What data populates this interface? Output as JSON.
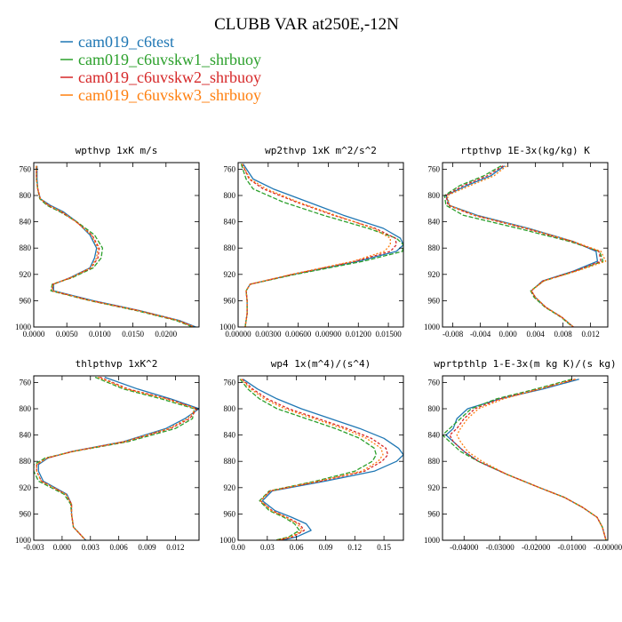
{
  "figure_title": "CLUBB VAR at250E,-12N",
  "legend": {
    "placement": "top-left",
    "entries": [
      {
        "label": "cam019_c6test",
        "color": "#1f77b4"
      },
      {
        "label": "cam019_c6uvskw1_shrbuoy",
        "color": "#2ca02c"
      },
      {
        "label": "cam019_c6uvskw2_shrbuoy",
        "color": "#d62728"
      },
      {
        "label": "cam019_c6uvskw3_shrbuoy",
        "color": "#ff7f0e"
      }
    ]
  },
  "chart_data": [
    {
      "type": "line",
      "title": "wpthvp  1xK m/s",
      "xlim": [
        0,
        0.025
      ],
      "xticks": [
        0,
        0.005,
        0.01,
        0.015,
        0.02
      ],
      "xtick_labels": [
        "0.0000",
        "0.0050",
        "0.0100",
        "0.0150",
        "0.0200"
      ],
      "ylim": [
        1000,
        750
      ],
      "yticks": [
        760,
        800,
        840,
        880,
        920,
        960,
        1000
      ],
      "ytick_labels": [
        "760",
        "800",
        "840",
        "880",
        "920",
        "960",
        "1000"
      ],
      "y": [
        755,
        775,
        790,
        805,
        815,
        825,
        840,
        860,
        880,
        895,
        910,
        925,
        935,
        945,
        960,
        975,
        990,
        1000
      ],
      "series": [
        {
          "name": "cam019_c6test",
          "color": "#1f77b4",
          "x": [
            0.0005,
            0.0005,
            0.0006,
            0.001,
            0.0025,
            0.0045,
            0.0065,
            0.0085,
            0.0095,
            0.0092,
            0.0085,
            0.0055,
            0.003,
            0.003,
            0.009,
            0.016,
            0.022,
            0.0245
          ]
        },
        {
          "name": "cam019_c6uvskw1_shrbuoy",
          "color": "#2ca02c",
          "x": [
            0.0004,
            0.0004,
            0.0006,
            0.0009,
            0.002,
            0.004,
            0.0065,
            0.0092,
            0.0104,
            0.0102,
            0.009,
            0.0058,
            0.0028,
            0.0026,
            0.0085,
            0.0155,
            0.0215,
            0.024
          ]
        },
        {
          "name": "cam019_c6uvskw2_shrbuoy",
          "color": "#d62728",
          "x": [
            0.0004,
            0.0004,
            0.0006,
            0.001,
            0.0022,
            0.0042,
            0.0064,
            0.0088,
            0.0099,
            0.0097,
            0.0087,
            0.0056,
            0.0029,
            0.0028,
            0.0087,
            0.0158,
            0.0218,
            0.0243
          ]
        },
        {
          "name": "cam019_c6uvskw3_shrbuoy",
          "color": "#ff7f0e",
          "x": [
            0.0004,
            0.0004,
            0.0006,
            0.001,
            0.0023,
            0.0043,
            0.0064,
            0.0087,
            0.0097,
            0.0095,
            0.0086,
            0.0056,
            0.0029,
            0.0028,
            0.0087,
            0.0158,
            0.0218,
            0.0243
          ]
        }
      ]
    },
    {
      "type": "line",
      "title": "wp2thvp  1xK m^2/s^2",
      "xlim": [
        0,
        0.0165
      ],
      "xticks": [
        0,
        0.003,
        0.006,
        0.009,
        0.012,
        0.015
      ],
      "xtick_labels": [
        "0.00000",
        "0.00300",
        "0.00600",
        "0.00900",
        "0.01200",
        "0.01500"
      ],
      "ylim": [
        1000,
        750
      ],
      "yticks": [
        760,
        800,
        840,
        880,
        920,
        960,
        1000
      ],
      "ytick_labels": [
        "760",
        "800",
        "840",
        "880",
        "920",
        "960",
        "1000"
      ],
      "y": [
        752,
        775,
        790,
        810,
        830,
        850,
        865,
        875,
        885,
        900,
        920,
        935,
        945,
        960,
        980,
        1000
      ],
      "series": [
        {
          "name": "cam019_c6test",
          "color": "#1f77b4",
          "x": [
            0.0005,
            0.0015,
            0.0035,
            0.007,
            0.0105,
            0.0145,
            0.0162,
            0.0165,
            0.0158,
            0.012,
            0.0055,
            0.0012,
            0.0008,
            0.0009,
            0.0009,
            0.0007
          ]
        },
        {
          "name": "cam019_c6uvskw1_shrbuoy",
          "color": "#2ca02c",
          "x": [
            0.0003,
            0.0008,
            0.0015,
            0.0045,
            0.0085,
            0.013,
            0.0158,
            0.0165,
            0.0164,
            0.0125,
            0.0057,
            0.0012,
            0.0008,
            0.0009,
            0.0009,
            0.0007
          ]
        },
        {
          "name": "cam019_c6uvskw2_shrbuoy",
          "color": "#d62728",
          "x": [
            0.0004,
            0.0011,
            0.0025,
            0.0058,
            0.0095,
            0.0137,
            0.0157,
            0.0158,
            0.0152,
            0.0117,
            0.0054,
            0.0012,
            0.0008,
            0.0009,
            0.0009,
            0.0007
          ]
        },
        {
          "name": "cam019_c6uvskw3_shrbuoy",
          "color": "#ff7f0e",
          "x": [
            0.0004,
            0.0012,
            0.0028,
            0.006,
            0.0097,
            0.0135,
            0.0152,
            0.0152,
            0.0146,
            0.0115,
            0.0053,
            0.0012,
            0.0008,
            0.0009,
            0.0009,
            0.0007
          ]
        }
      ]
    },
    {
      "type": "line",
      "title": "rtpthvp  1E-3x(kg/kg) K",
      "xlim": [
        -0.0095,
        0.0145
      ],
      "xticks": [
        -0.008,
        -0.004,
        0,
        0.004,
        0.008,
        0.012
      ],
      "xtick_labels": [
        "-0.008",
        "-0.004",
        "0.000",
        "0.004",
        "0.008",
        "0.012"
      ],
      "ylim": [
        1000,
        750
      ],
      "yticks": [
        760,
        800,
        840,
        880,
        920,
        960,
        1000
      ],
      "ytick_labels": [
        "760",
        "800",
        "840",
        "880",
        "920",
        "960",
        "1000"
      ],
      "y": [
        755,
        770,
        785,
        800,
        815,
        830,
        850,
        870,
        885,
        900,
        915,
        930,
        945,
        955,
        970,
        985,
        1000
      ],
      "series": [
        {
          "name": "cam019_c6test",
          "color": "#1f77b4",
          "x": [
            -0.0005,
            -0.0025,
            -0.006,
            -0.009,
            -0.0085,
            -0.0045,
            0.003,
            0.0095,
            0.0128,
            0.013,
            0.0095,
            0.005,
            0.0034,
            0.004,
            0.0055,
            0.0078,
            0.0095
          ]
        },
        {
          "name": "cam019_c6uvskw1_shrbuoy",
          "color": "#2ca02c",
          "x": [
            -0.001,
            -0.0035,
            -0.007,
            -0.0092,
            -0.009,
            -0.0065,
            0.0015,
            0.009,
            0.0133,
            0.0138,
            0.0098,
            0.0052,
            0.0033,
            0.0038,
            0.0054,
            0.0077,
            0.0094
          ]
        },
        {
          "name": "cam019_c6uvskw2_shrbuoy",
          "color": "#d62728",
          "x": [
            -0.0007,
            -0.003,
            -0.0065,
            -0.009,
            -0.0087,
            -0.005,
            0.0025,
            0.0093,
            0.0132,
            0.0135,
            0.0097,
            0.0051,
            0.0034,
            0.004,
            0.0055,
            0.0078,
            0.0095
          ]
        },
        {
          "name": "cam019_c6uvskw3_shrbuoy",
          "color": "#ff7f0e",
          "x": [
            -0.0002,
            -0.002,
            -0.0055,
            -0.0088,
            -0.0085,
            -0.0048,
            0.0028,
            0.0095,
            0.0135,
            0.0142,
            0.01,
            0.0052,
            0.0034,
            0.004,
            0.0055,
            0.0078,
            0.0095
          ]
        }
      ]
    },
    {
      "type": "line",
      "title": "thlpthvp  1xK^2",
      "xlim": [
        -0.003,
        0.0145
      ],
      "xticks": [
        -0.003,
        0,
        0.003,
        0.006,
        0.009,
        0.012
      ],
      "xtick_labels": [
        "-0.003",
        "0.000",
        "0.003",
        "0.006",
        "0.009",
        "0.012"
      ],
      "ylim": [
        1000,
        750
      ],
      "yticks": [
        760,
        800,
        840,
        880,
        920,
        960,
        1000
      ],
      "ytick_labels": [
        "760",
        "800",
        "840",
        "880",
        "920",
        "960",
        "1000"
      ],
      "y": [
        752,
        770,
        785,
        800,
        815,
        830,
        850,
        865,
        875,
        885,
        895,
        910,
        930,
        945,
        960,
        980,
        1000
      ],
      "series": [
        {
          "name": "cam019_c6test",
          "color": "#1f77b4",
          "x": [
            0.0045,
            0.008,
            0.0115,
            0.0145,
            0.013,
            0.011,
            0.0065,
            0.001,
            -0.0015,
            -0.0025,
            -0.0025,
            -0.002,
            0.0005,
            0.001,
            0.001,
            0.0012,
            0.0025
          ]
        },
        {
          "name": "cam019_c6uvskw1_shrbuoy",
          "color": "#2ca02c",
          "x": [
            0.0035,
            0.0065,
            0.0105,
            0.014,
            0.0138,
            0.012,
            0.007,
            0.0012,
            -0.0018,
            -0.003,
            -0.003,
            -0.0025,
            0.0002,
            0.0009,
            0.001,
            0.0012,
            0.0025
          ]
        },
        {
          "name": "cam019_c6uvskw2_shrbuoy",
          "color": "#d62728",
          "x": [
            0.004,
            0.007,
            0.0112,
            0.0143,
            0.0135,
            0.0115,
            0.0067,
            0.0011,
            -0.0016,
            -0.0027,
            -0.0027,
            -0.0022,
            0.0004,
            0.001,
            0.001,
            0.0012,
            0.0025
          ]
        },
        {
          "name": "cam019_c6uvskw3_shrbuoy",
          "color": "#ff7f0e",
          "x": [
            0.0038,
            0.0068,
            0.011,
            0.0142,
            0.0133,
            0.0113,
            0.0066,
            0.0011,
            -0.0016,
            -0.0027,
            -0.0027,
            -0.0022,
            0.0004,
            0.001,
            0.001,
            0.0012,
            0.0025
          ]
        }
      ]
    },
    {
      "type": "line",
      "title": "wp4  1x(m^4)/(s^4)",
      "xlim": [
        0,
        0.17
      ],
      "xticks": [
        0,
        0.03,
        0.06,
        0.09,
        0.12,
        0.15
      ],
      "xtick_labels": [
        "0.00",
        "0.03",
        "0.06",
        "0.09",
        "0.12",
        "0.15"
      ],
      "ylim": [
        1000,
        750
      ],
      "yticks": [
        760,
        800,
        840,
        880,
        920,
        960,
        1000
      ],
      "ytick_labels": [
        "760",
        "800",
        "840",
        "880",
        "920",
        "960",
        "1000"
      ],
      "y": [
        755,
        770,
        785,
        800,
        815,
        830,
        845,
        860,
        870,
        880,
        895,
        910,
        925,
        940,
        955,
        965,
        975,
        985,
        995,
        1000
      ],
      "series": [
        {
          "name": "cam019_c6test",
          "color": "#1f77b4",
          "x": [
            0.005,
            0.02,
            0.04,
            0.065,
            0.095,
            0.125,
            0.15,
            0.165,
            0.17,
            0.163,
            0.14,
            0.09,
            0.035,
            0.025,
            0.038,
            0.055,
            0.07,
            0.075,
            0.06,
            0.045
          ]
        },
        {
          "name": "cam019_c6uvskw1_shrbuoy",
          "color": "#2ca02c",
          "x": [
            0.002,
            0.01,
            0.022,
            0.04,
            0.07,
            0.1,
            0.125,
            0.14,
            0.142,
            0.138,
            0.12,
            0.08,
            0.032,
            0.022,
            0.032,
            0.047,
            0.058,
            0.063,
            0.052,
            0.038
          ]
        },
        {
          "name": "cam019_c6uvskw2_shrbuoy",
          "color": "#d62728",
          "x": [
            0.004,
            0.015,
            0.03,
            0.052,
            0.082,
            0.112,
            0.137,
            0.152,
            0.154,
            0.148,
            0.13,
            0.085,
            0.033,
            0.023,
            0.035,
            0.05,
            0.063,
            0.068,
            0.056,
            0.041
          ]
        },
        {
          "name": "cam019_c6uvskw3_shrbuoy",
          "color": "#ff7f0e",
          "x": [
            0.003,
            0.013,
            0.027,
            0.048,
            0.078,
            0.108,
            0.132,
            0.147,
            0.149,
            0.144,
            0.127,
            0.083,
            0.033,
            0.023,
            0.034,
            0.049,
            0.061,
            0.066,
            0.054,
            0.04
          ]
        }
      ]
    },
    {
      "type": "line",
      "title": "wprtpthlp  1-E-3x(m kg K)/(s kg)",
      "xlim": [
        -0.046,
        0.0
      ],
      "xticks": [
        -0.04,
        -0.03,
        -0.02,
        -0.01,
        0.0
      ],
      "xtick_labels": [
        "-0.04000",
        "-0.03000",
        "-0.02000",
        "-0.01000",
        "-0.00000"
      ],
      "ylim": [
        1000,
        750
      ],
      "yticks": [
        760,
        800,
        840,
        880,
        920,
        960,
        1000
      ],
      "ytick_labels": [
        "760",
        "800",
        "840",
        "880",
        "920",
        "960",
        "1000"
      ],
      "y": [
        755,
        770,
        785,
        800,
        815,
        830,
        840,
        850,
        865,
        880,
        900,
        920,
        935,
        950,
        965,
        980,
        1000
      ],
      "series": [
        {
          "name": "cam019_c6test",
          "color": "#1f77b4",
          "x": [
            -0.008,
            -0.018,
            -0.03,
            -0.039,
            -0.042,
            -0.043,
            -0.045,
            -0.043,
            -0.04,
            -0.036,
            -0.028,
            -0.019,
            -0.012,
            -0.007,
            -0.003,
            -0.0015,
            -0.0005
          ]
        },
        {
          "name": "cam019_c6uvskw1_shrbuoy",
          "color": "#2ca02c",
          "x": [
            -0.01,
            -0.02,
            -0.031,
            -0.038,
            -0.041,
            -0.044,
            -0.046,
            -0.044,
            -0.041,
            -0.036,
            -0.028,
            -0.019,
            -0.012,
            -0.007,
            -0.003,
            -0.0015,
            -0.0005
          ]
        },
        {
          "name": "cam019_c6uvskw2_shrbuoy",
          "color": "#d62728",
          "x": [
            -0.009,
            -0.019,
            -0.03,
            -0.037,
            -0.04,
            -0.042,
            -0.044,
            -0.043,
            -0.04,
            -0.036,
            -0.028,
            -0.019,
            -0.012,
            -0.007,
            -0.003,
            -0.0015,
            -0.0005
          ]
        },
        {
          "name": "cam019_c6uvskw3_shrbuoy",
          "color": "#ff7f0e",
          "x": [
            -0.009,
            -0.019,
            -0.029,
            -0.036,
            -0.039,
            -0.041,
            -0.042,
            -0.041,
            -0.039,
            -0.035,
            -0.028,
            -0.019,
            -0.012,
            -0.007,
            -0.003,
            -0.0015,
            -0.0005
          ]
        }
      ]
    }
  ]
}
